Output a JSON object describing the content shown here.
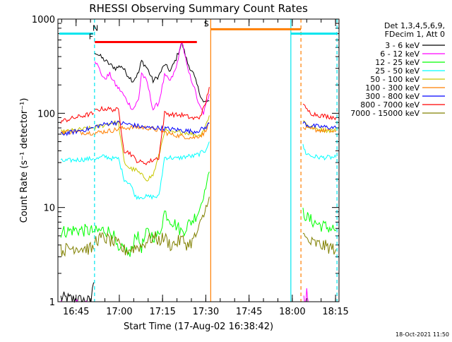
{
  "chart_data": {
    "type": "line",
    "title": "RHESSI Observing Summary Count Rates",
    "xlabel": "Start Time (17-Aug-02 16:38:42)",
    "ylabel": "Count Rate (s⁻¹ detector⁻¹)",
    "yscale": "log",
    "ylim": [
      1,
      1000
    ],
    "xlim_minutes": [
      -1.0,
      96.5
    ],
    "x_reference": "16:38:42",
    "x_ticks": [
      {
        "min": 5.3,
        "label": "16:45"
      },
      {
        "min": 20.3,
        "label": "17:00"
      },
      {
        "min": 35.3,
        "label": "17:15"
      },
      {
        "min": 50.3,
        "label": "17:30"
      },
      {
        "min": 65.3,
        "label": "17:45"
      },
      {
        "min": 80.3,
        "label": "18:00"
      },
      {
        "min": 95.3,
        "label": "18:15"
      }
    ],
    "y_ticks": [
      {
        "value": 1,
        "label": "1"
      },
      {
        "value": 10,
        "label": "10"
      },
      {
        "value": 100,
        "label": "100"
      },
      {
        "value": 1000,
        "label": "1000"
      }
    ],
    "legend_header": [
      "Det 1,3,4,5,6,9,",
      "FDecim 1, Att 0"
    ],
    "timestamp": "18-Oct-2021 11:50",
    "annotation_bars": [
      {
        "label": "",
        "color": "#00e5ee",
        "y": 700,
        "x0": -0.5,
        "x1": 11.3,
        "label_at": null
      },
      {
        "label": "N",
        "color": "#00e5ee",
        "y": 700,
        "x0": 11.6,
        "x1": 11.8,
        "label_at": 12.0
      },
      {
        "label": "F",
        "color": "#ff0000",
        "y": 570,
        "x0": 11.8,
        "x1": 47.2,
        "label_at": 10.5
      },
      {
        "label": "S",
        "color": "#ff7f00",
        "y": 780,
        "x0": 52.0,
        "x1": 83.3,
        "label_at": 50.5
      },
      {
        "label": "",
        "color": "#00e5ee",
        "y": 700,
        "x0": 79.8,
        "x1": 95.8,
        "label_at": null
      }
    ],
    "vertical_lines": [
      {
        "x": 11.7,
        "color": "#00e5ee",
        "style": "dashed"
      },
      {
        "x": 52.0,
        "color": "#ff7f00",
        "style": "solid"
      },
      {
        "x": 79.8,
        "color": "#00e5ee",
        "style": "solid"
      },
      {
        "x": 83.3,
        "color": "#ff7f00",
        "style": "dashed"
      },
      {
        "x": 95.8,
        "color": "#00e5ee",
        "style": "dashed"
      }
    ],
    "series": [
      {
        "name": "3 - 6 keV",
        "color": "#000000",
        "segments": [
          {
            "x": [
              0,
              10.5,
              11.4
            ],
            "y": [
              1.1,
              1.0,
              1.6
            ]
          },
          {
            "x": [
              11.8,
              13,
              15,
              17,
              19,
              21,
              23,
              25,
              27,
              28,
              30,
              32,
              34,
              36,
              38,
              40,
              42,
              44,
              46,
              48,
              49.5,
              51.5
            ],
            "y": [
              450,
              420,
              370,
              330,
              300,
              320,
              260,
              220,
              270,
              360,
              300,
              220,
              250,
              330,
              280,
              380,
              560,
              340,
              260,
              170,
              130,
              135
            ]
          }
        ]
      },
      {
        "name": "6 - 12 keV",
        "color": "#ff00ff",
        "segments": [
          {
            "x": [
              0,
              11.4
            ],
            "y": [
              0.9,
              0.9
            ]
          },
          {
            "x": [
              11.8,
              13,
              15,
              17,
              19,
              21,
              23,
              25,
              27,
              28,
              30,
              32,
              34,
              36,
              38,
              40,
              42,
              44,
              46,
              48,
              49.5,
              51.5
            ],
            "y": [
              370,
              310,
              230,
              260,
              200,
              170,
              135,
              110,
              140,
              270,
              210,
              110,
              130,
              250,
              220,
              300,
              600,
              290,
              200,
              120,
              100,
              160
            ]
          },
          {
            "x": [
              84.3,
              84.8,
              85.3,
              85.8
            ],
            "y": [
              1.3,
              0.9,
              1.4,
              0.9
            ]
          }
        ]
      },
      {
        "name": "12 - 25 keV",
        "color": "#00ff00",
        "segments": [
          {
            "x": [
              0,
              5,
              11.4
            ],
            "y": [
              5.5,
              5.8,
              5.6
            ]
          },
          {
            "x": [
              11.8,
              15,
              18,
              20,
              22,
              24,
              26,
              28,
              30,
              32,
              34,
              36,
              38,
              40,
              42,
              44,
              46,
              48,
              49.5,
              51.5
            ],
            "y": [
              5.5,
              5.8,
              5.4,
              3.2,
              3.8,
              3.0,
              5.5,
              3.8,
              5.5,
              5.0,
              5.0,
              9.0,
              7.5,
              6.5,
              5.5,
              6.5,
              7.5,
              9.5,
              13,
              24
            ]
          },
          {
            "x": [
              84.0,
              86,
              90,
              95.5
            ],
            "y": [
              9.0,
              7.5,
              6.5,
              5.8
            ]
          }
        ]
      },
      {
        "name": "25 - 50 keV",
        "color": "#00ffff",
        "segments": [
          {
            "x": [
              0,
              5,
              11.4
            ],
            "y": [
              31,
              32,
              33
            ]
          },
          {
            "x": [
              11.8,
              13,
              15,
              18,
              20,
              22,
              24,
              26,
              28,
              30,
              32,
              34,
              36,
              38,
              40,
              42,
              44,
              46,
              48,
              50,
              51.5
            ],
            "y": [
              33,
              33,
              35,
              33,
              33,
              20,
              18,
              13,
              13,
              13,
              13,
              13,
              34,
              34,
              33,
              34,
              35,
              35,
              37,
              40,
              50
            ]
          },
          {
            "x": [
              84.0,
              85,
              87,
              90,
              95.5
            ],
            "y": [
              45,
              38,
              35,
              34,
              34
            ]
          }
        ]
      },
      {
        "name": "50 - 100 keV",
        "color": "#c8c800",
        "segments": [
          {
            "x": [
              0,
              5,
              11.4
            ],
            "y": [
              63,
              66,
              70
            ]
          },
          {
            "x": [
              11.8,
              13,
              15,
              18,
              20,
              22,
              24,
              26,
              28,
              30,
              32,
              34,
              36,
              38,
              40,
              42,
              44,
              46,
              48,
              50,
              51.5
            ],
            "y": [
              70,
              72,
              75,
              80,
              78,
              30,
              26,
              25,
              22,
              20,
              22,
              35,
              66,
              62,
              62,
              64,
              62,
              60,
              58,
              70,
              95
            ]
          },
          {
            "x": [
              84.0,
              86,
              90,
              95.5
            ],
            "y": [
              85,
              72,
              67,
              65
            ]
          }
        ]
      },
      {
        "name": "100 - 300 keV",
        "color": "#ff7f00",
        "segments": [
          {
            "x": [
              0,
              5,
              11.4
            ],
            "y": [
              64,
              63,
              62
            ]
          },
          {
            "x": [
              11.8,
              15,
              18,
              22,
              26,
              30,
              34,
              38,
              42,
              46,
              49.5,
              51.5
            ],
            "y": [
              62,
              64,
              66,
              70,
              71,
              70,
              66,
              60,
              57,
              55,
              60,
              80
            ]
          },
          {
            "x": [
              84.0,
              86,
              90,
              95.5
            ],
            "y": [
              70,
              68,
              66,
              64
            ]
          }
        ]
      },
      {
        "name": "300 - 800 keV",
        "color": "#0000ff",
        "segments": [
          {
            "x": [
              0,
              5,
              11.4
            ],
            "y": [
              60,
              64,
              70
            ]
          },
          {
            "x": [
              11.8,
              13,
              15,
              18,
              22,
              26,
              30,
              34,
              38,
              42,
              46,
              48,
              50,
              51.5
            ],
            "y": [
              72,
              74,
              76,
              80,
              78,
              74,
              70,
              70,
              68,
              66,
              64,
              66,
              70,
              78
            ]
          },
          {
            "x": [
              84.0,
              86,
              90,
              95.5
            ],
            "y": [
              80,
              74,
              72,
              70
            ]
          }
        ]
      },
      {
        "name": "800 - 7000 keV",
        "color": "#ff0000",
        "segments": [
          {
            "x": [
              0,
              5,
              11.4
            ],
            "y": [
              82,
              90,
              100
            ]
          },
          {
            "x": [
              11.8,
              13,
              15,
              18,
              20,
              22,
              24,
              26,
              28,
              30,
              32,
              34,
              36,
              38,
              40,
              42,
              44,
              46,
              48,
              50,
              51.5
            ],
            "y": [
              105,
              110,
              112,
              110,
              108,
              40,
              38,
              32,
              30,
              30,
              32,
              34,
              100,
              98,
              96,
              96,
              92,
              88,
              90,
              120,
              190
            ]
          },
          {
            "x": [
              84.0,
              85,
              87,
              90,
              95.5
            ],
            "y": [
              130,
              110,
              100,
              95,
              90
            ]
          }
        ]
      },
      {
        "name": "7000 - 15000 keV",
        "color": "#808000",
        "segments": [
          {
            "x": [
              0,
              5,
              11.4
            ],
            "y": [
              3.5,
              3.8,
              3.6
            ]
          },
          {
            "x": [
              11.8,
              15,
              18,
              20,
              22,
              24,
              26,
              28,
              30,
              32,
              34,
              36,
              38,
              40,
              42,
              44,
              46,
              48,
              50,
              51.5
            ],
            "y": [
              4.5,
              4.8,
              4.3,
              4.0,
              3.5,
              3.6,
              3.8,
              3.9,
              4.5,
              4.8,
              4.5,
              4.8,
              4.0,
              4.2,
              4.6,
              4.0,
              4.5,
              6.0,
              9.0,
              13
            ]
          },
          {
            "x": [
              84.0,
              86,
              90,
              95.5
            ],
            "y": [
              5.0,
              4.3,
              4.0,
              3.6
            ]
          }
        ]
      }
    ]
  }
}
